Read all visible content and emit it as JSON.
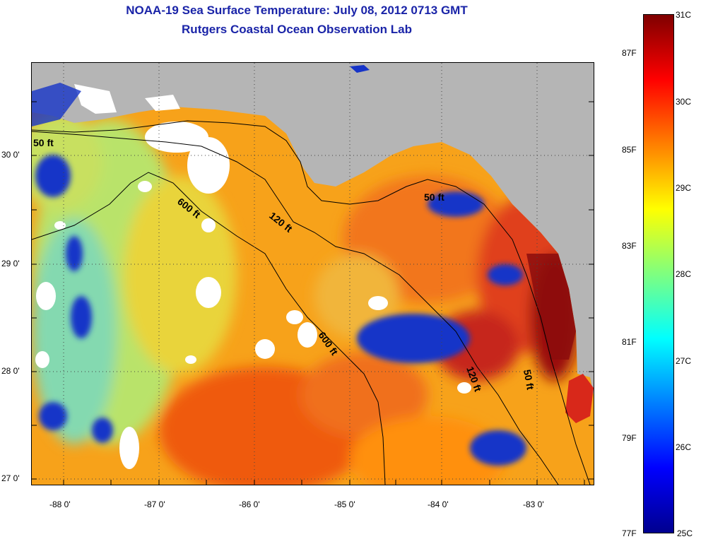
{
  "header": {
    "title": "NOAA-19 Sea Surface Temperature:  July 08, 2012 0713 GMT",
    "subtitle": "Rutgers Coastal Ocean Observation Lab"
  },
  "map": {
    "lat_labels": [
      "30 0'",
      "29 0'",
      "28 0'",
      "27 0'"
    ],
    "lon_labels": [
      "-88 0'",
      "-87 0'",
      "-86 0'",
      "-85 0'",
      "-84 0'",
      "-83 0'"
    ],
    "contour_labels": [
      "50 ft",
      "600 ft",
      "120 ft",
      "50 ft",
      "600 ft",
      "120 ft",
      "50 ft"
    ],
    "colors": {
      "land": "#b5b5b5",
      "cloud": "#ffffff",
      "isobath": "#000000"
    }
  },
  "colorbar": {
    "celsius_labels": [
      "31C",
      "30C",
      "29C",
      "28C",
      "27C",
      "26C",
      "25C"
    ],
    "fahrenheit_labels": [
      "87F",
      "85F",
      "83F",
      "81F",
      "79F",
      "77F"
    ],
    "range_c": [
      25,
      31
    ],
    "colors": [
      "#7f0000",
      "#ff0000",
      "#ff7f00",
      "#ffff00",
      "#7fff7f",
      "#00ffff",
      "#007fff",
      "#0000ff",
      "#00008f"
    ]
  }
}
